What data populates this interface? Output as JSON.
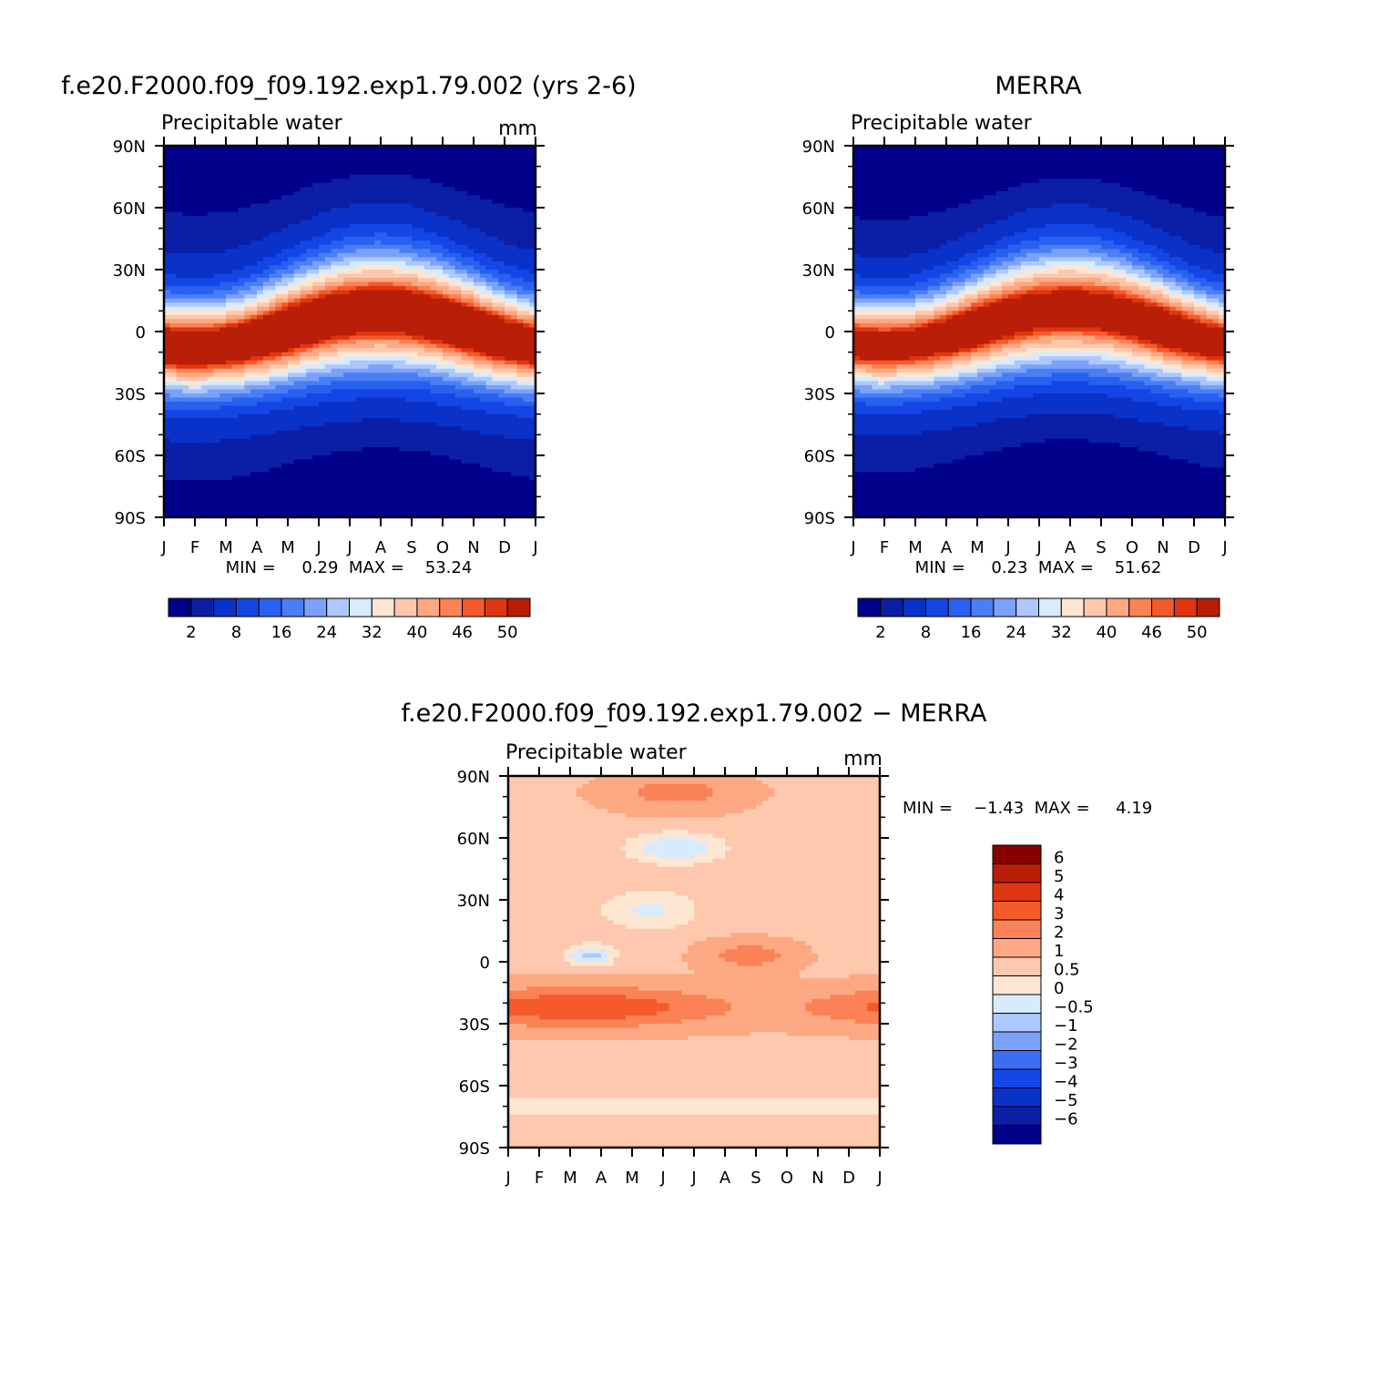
{
  "chart_data": [
    {
      "type": "heatmap",
      "title": "f.e20.F2000.f09_f09.192.exp1.79.002 (yrs 2-6)",
      "subtitle": "Precipitable water",
      "units": "mm",
      "x_categories": [
        "J",
        "F",
        "M",
        "A",
        "M",
        "J",
        "J",
        "A",
        "S",
        "O",
        "N",
        "D",
        "J"
      ],
      "y_ticks": [
        "90N",
        "60N",
        "30N",
        "0",
        "30S",
        "60S",
        "90S"
      ],
      "y_values": [
        90,
        60,
        30,
        0,
        -30,
        -60,
        -90
      ],
      "min_max_text": "MIN =     0.29  MAX =    53.24",
      "min": 0.29,
      "max": 53.24,
      "contour_levels": [
        2,
        4,
        8,
        12,
        16,
        20,
        24,
        28,
        32,
        36,
        40,
        44,
        46,
        48,
        50
      ],
      "colorbar_labels": [
        "2",
        "8",
        "16",
        "24",
        "32",
        "40",
        "46",
        "50"
      ]
    },
    {
      "type": "heatmap",
      "title": "MERRA",
      "subtitle": "Precipitable water",
      "x_categories": [
        "J",
        "F",
        "M",
        "A",
        "M",
        "J",
        "J",
        "A",
        "S",
        "O",
        "N",
        "D",
        "J"
      ],
      "y_ticks": [
        "90N",
        "60N",
        "30N",
        "0",
        "30S",
        "60S",
        "90S"
      ],
      "y_values": [
        90,
        60,
        30,
        0,
        -30,
        -60,
        -90
      ],
      "min_max_text": "MIN =     0.23  MAX =    51.62",
      "min": 0.23,
      "max": 51.62,
      "contour_levels": [
        2,
        4,
        8,
        12,
        16,
        20,
        24,
        28,
        32,
        36,
        40,
        44,
        46,
        48,
        50
      ],
      "colorbar_labels": [
        "2",
        "8",
        "16",
        "24",
        "32",
        "40",
        "46",
        "50"
      ]
    },
    {
      "type": "heatmap",
      "title": "f.e20.F2000.f09_f09.192.exp1.79.002 − MERRA",
      "subtitle": "Precipitable water",
      "units": "mm",
      "x_categories": [
        "J",
        "F",
        "M",
        "A",
        "M",
        "J",
        "J",
        "A",
        "S",
        "O",
        "N",
        "D",
        "J"
      ],
      "y_ticks": [
        "90N",
        "60N",
        "30N",
        "0",
        "30S",
        "60S",
        "90S"
      ],
      "y_values": [
        90,
        60,
        30,
        0,
        -30,
        -60,
        -90
      ],
      "min_max_text": "MIN =    −1.43  MAX =     4.19",
      "min": -1.43,
      "max": 4.19,
      "contour_levels": [
        -6,
        -5,
        -4,
        -3,
        -2,
        -1,
        -0.5,
        0,
        0.5,
        1,
        2,
        3,
        4,
        5,
        6
      ],
      "colorbar_labels": [
        "6",
        "5",
        "4",
        "3",
        "2",
        "1",
        "0.5",
        "0",
        "−0.5",
        "−1",
        "−2",
        "−3",
        "−4",
        "−5",
        "−6"
      ]
    }
  ],
  "colors": {
    "sequential": [
      "#00008a",
      "#0a1ea6",
      "#0a32c8",
      "#1446e6",
      "#2860f0",
      "#4a7ef5",
      "#7aa2fa",
      "#adc8fc",
      "#d8ebfc",
      "#fde6d2",
      "#fdc8ae",
      "#fca882",
      "#fb8256",
      "#f55a2a",
      "#e0360f",
      "#b81e08",
      "#880000"
    ],
    "diverging": [
      "#00008a",
      "#0a1ea6",
      "#0a32c8",
      "#1446e6",
      "#3a6ef5",
      "#7aa2fa",
      "#adc8fc",
      "#d8ebfc",
      "#fde6d2",
      "#fdc8ae",
      "#fca882",
      "#fb8256",
      "#f55a2a",
      "#e0360f",
      "#b81e08",
      "#880000"
    ]
  }
}
